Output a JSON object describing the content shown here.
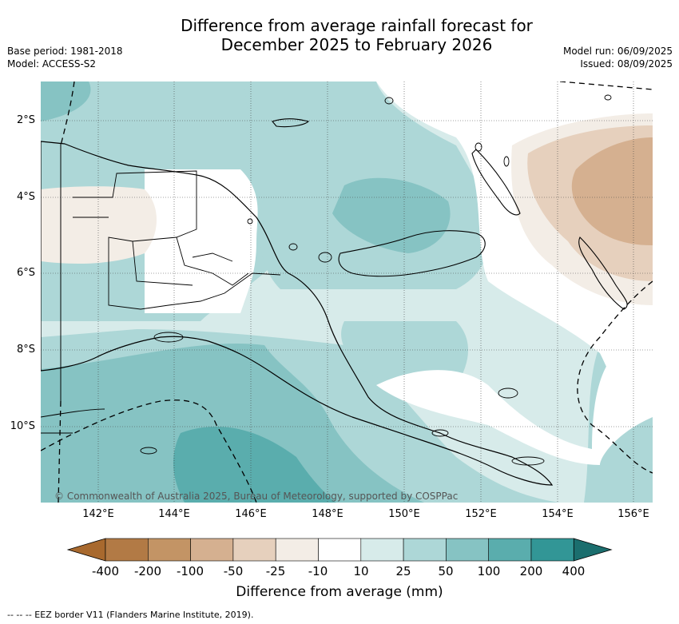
{
  "header": {
    "title_line1": "Difference from average rainfall forecast for",
    "title_line2": "December 2025 to February 2026",
    "base_period": "Base period: 1981-2018",
    "model": "Model: ACCESS-S2",
    "model_run": "Model run: 06/09/2025",
    "issued": "Issued: 08/09/2025"
  },
  "map": {
    "lat_labels": [
      "2°S",
      "4°S",
      "6°S",
      "8°S",
      "10°S"
    ],
    "lon_labels": [
      "142°E",
      "144°E",
      "146°E",
      "148°E",
      "150°E",
      "152°E",
      "154°E",
      "156°E"
    ],
    "copyright": "© Commonwealth of Australia 2025, Bureau of Meteorology, supported by COSPPac",
    "overlays": [
      "coastline",
      "international borders",
      "province borders",
      "EEZ border (dashed)",
      "graticule (dotted)"
    ]
  },
  "legend": {
    "title": "Difference from average (mm)",
    "tick_labels": [
      "-400",
      "-200",
      "-100",
      "-50",
      "-25",
      "-10",
      "10",
      "25",
      "50",
      "100",
      "200",
      "400"
    ],
    "colors": [
      "#a8692e",
      "#b27a45",
      "#c39465",
      "#d5b090",
      "#e6d0bd",
      "#f3ede6",
      "#ffffff",
      "#d7ebea",
      "#add7d7",
      "#86c3c3",
      "#5aadad",
      "#329696",
      "#1b6e6e"
    ],
    "eez_note": "--  --  -- EEZ border V11 (Flanders Marine Institute, 2019)."
  }
}
